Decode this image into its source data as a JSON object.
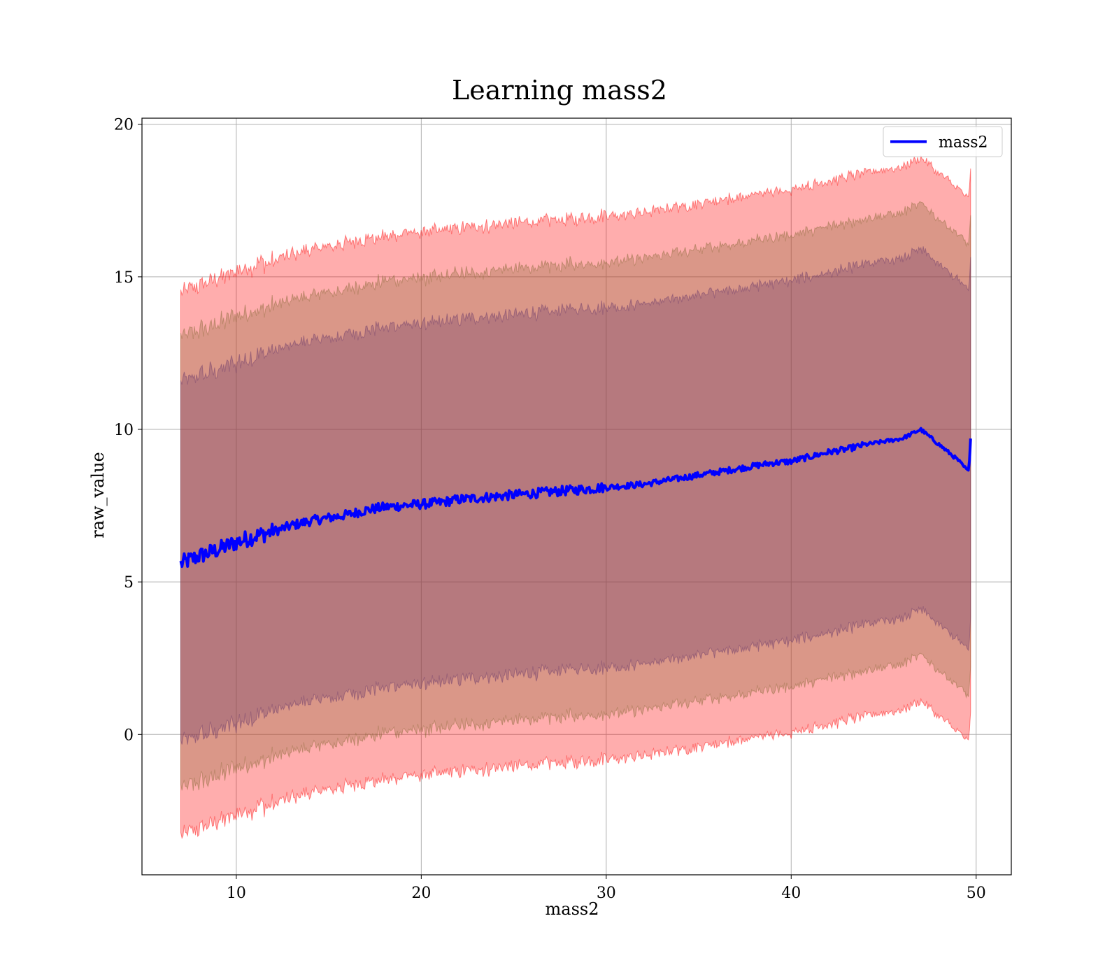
{
  "chart_data": {
    "type": "line",
    "title": "Learning mass2",
    "xlabel": "mass2",
    "ylabel": "raw_value",
    "xlim": [
      4.9,
      51.9
    ],
    "ylim": [
      -4.6,
      20.2
    ],
    "xticks": [
      10,
      20,
      30,
      40,
      50
    ],
    "yticks": [
      0,
      5,
      10,
      15,
      20
    ],
    "grid": true,
    "legend": {
      "position": "top-right",
      "entries": [
        "mass2"
      ]
    },
    "colors": {
      "line": "#0000ff",
      "band_outer": "#ff0000",
      "band_middle": "#8b6a3a",
      "band_inner": "#6b3a6b"
    },
    "series": [
      {
        "name": "mass2",
        "x": [
          7,
          8,
          9,
          10,
          11,
          12,
          13,
          14,
          15,
          16,
          17,
          18,
          19,
          20,
          21,
          22,
          23,
          24,
          25,
          26,
          27,
          28,
          29,
          30,
          31,
          32,
          33,
          34,
          35,
          36,
          37,
          38,
          39,
          40,
          41,
          42,
          43,
          44,
          45,
          46,
          47,
          48,
          49,
          49.6,
          49.7
        ],
        "y": [
          5.6,
          5.85,
          6.05,
          6.3,
          6.5,
          6.65,
          6.85,
          7.0,
          7.1,
          7.2,
          7.35,
          7.45,
          7.5,
          7.55,
          7.6,
          7.7,
          7.75,
          7.8,
          7.85,
          7.9,
          7.95,
          8.0,
          8.05,
          8.1,
          8.15,
          8.2,
          8.3,
          8.4,
          8.5,
          8.6,
          8.7,
          8.8,
          8.9,
          8.95,
          9.1,
          9.25,
          9.35,
          9.5,
          9.6,
          9.7,
          10.0,
          9.5,
          9.0,
          8.6,
          9.7
        ]
      }
    ],
    "bands": [
      {
        "name": "outer",
        "lower_offset": -8.9,
        "upper_offset": 8.9,
        "opacity": 0.32
      },
      {
        "name": "middle",
        "lower_offset": -7.4,
        "upper_offset": 7.4,
        "opacity": 0.32
      },
      {
        "name": "inner",
        "lower_offset": -5.9,
        "upper_offset": 5.9,
        "opacity": 0.32
      }
    ]
  }
}
